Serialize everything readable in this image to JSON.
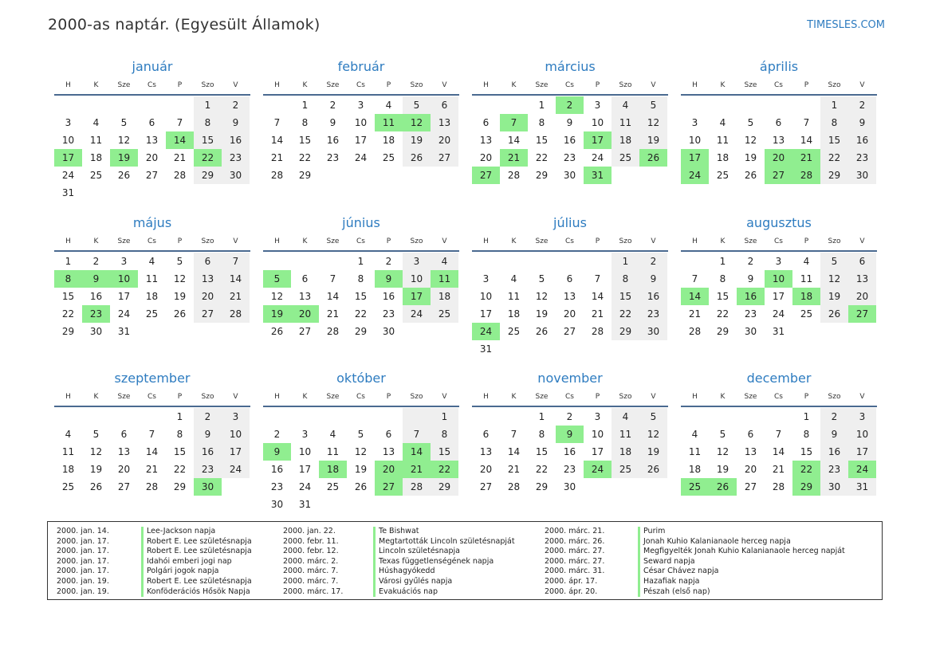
{
  "title": "2000-as naptár. (Egyesült Államok)",
  "site": "TIMESLES.COM",
  "colors": {
    "accent": "#2e7cc0",
    "holiday": "#90ee90",
    "weekend": "#efefef"
  },
  "weekday_headers": [
    "H",
    "K",
    "Sze",
    "Cs",
    "P",
    "Szo",
    "V"
  ],
  "months": [
    {
      "name": "január",
      "start_offset": 5,
      "days": 31,
      "holidays": [
        14,
        17,
        19,
        22
      ]
    },
    {
      "name": "február",
      "start_offset": 1,
      "days": 29,
      "holidays": [
        11,
        12
      ]
    },
    {
      "name": "március",
      "start_offset": 2,
      "days": 31,
      "holidays": [
        2,
        7,
        17,
        21,
        26,
        27,
        31
      ]
    },
    {
      "name": "április",
      "start_offset": 5,
      "days": 30,
      "holidays": [
        17,
        20,
        21,
        24,
        27,
        28
      ]
    },
    {
      "name": "május",
      "start_offset": 0,
      "days": 31,
      "holidays": [
        8,
        9,
        10,
        23
      ]
    },
    {
      "name": "június",
      "start_offset": 3,
      "days": 30,
      "holidays": [
        5,
        9,
        11,
        17,
        19,
        20
      ]
    },
    {
      "name": "július",
      "start_offset": 5,
      "days": 31,
      "holidays": [
        24
      ]
    },
    {
      "name": "augusztus",
      "start_offset": 1,
      "days": 31,
      "holidays": [
        10,
        14,
        16,
        18,
        27
      ]
    },
    {
      "name": "szeptember",
      "start_offset": 4,
      "days": 30,
      "holidays": [
        30
      ]
    },
    {
      "name": "október",
      "start_offset": 6,
      "days": 31,
      "holidays": [
        9,
        14,
        18,
        20,
        21,
        22,
        27
      ]
    },
    {
      "name": "november",
      "start_offset": 2,
      "days": 30,
      "holidays": [
        9,
        24
      ]
    },
    {
      "name": "december",
      "start_offset": 4,
      "days": 31,
      "holidays": [
        22,
        24,
        25,
        26,
        29
      ]
    }
  ],
  "holiday_list": [
    [
      {
        "date": "2000. jan. 14.",
        "name": "Lee-Jackson napja"
      },
      {
        "date": "2000. jan. 17.",
        "name": "Robert E. Lee születésnapja"
      },
      {
        "date": "2000. jan. 17.",
        "name": "Robert E. Lee születésnapja"
      },
      {
        "date": "2000. jan. 17.",
        "name": "Idahói emberi jogi nap"
      },
      {
        "date": "2000. jan. 17.",
        "name": "Polgári jogok napja"
      },
      {
        "date": "2000. jan. 19.",
        "name": "Robert E. Lee születésnapja"
      },
      {
        "date": "2000. jan. 19.",
        "name": "Konföderációs Hősök Napja"
      }
    ],
    [
      {
        "date": "2000. jan. 22.",
        "name": "Te Bishwat"
      },
      {
        "date": "2000. febr. 11.",
        "name": "Megtartották Lincoln születésnapját"
      },
      {
        "date": "2000. febr. 12.",
        "name": "Lincoln születésnapja"
      },
      {
        "date": "2000. márc. 2.",
        "name": "Texas függetlenségének napja"
      },
      {
        "date": "2000. márc. 7.",
        "name": "Húshagyókedd"
      },
      {
        "date": "2000. márc. 7.",
        "name": "Városi gyűlés napja"
      },
      {
        "date": "2000. márc. 17.",
        "name": "Evakuációs nap"
      }
    ],
    [
      {
        "date": "2000. márc. 21.",
        "name": "Purim"
      },
      {
        "date": "2000. márc. 26.",
        "name": "Jonah Kuhio Kalanianaole herceg napja"
      },
      {
        "date": "2000. márc. 27.",
        "name": "Megfigyelték Jonah Kuhio Kalanianaole herceg napját"
      },
      {
        "date": "2000. márc. 27.",
        "name": "Seward napja"
      },
      {
        "date": "2000. márc. 31.",
        "name": "César Chávez napja"
      },
      {
        "date": "2000. ápr. 17.",
        "name": "Hazafiak napja"
      },
      {
        "date": "2000. ápr. 20.",
        "name": "Pészah (első nap)"
      }
    ]
  ]
}
